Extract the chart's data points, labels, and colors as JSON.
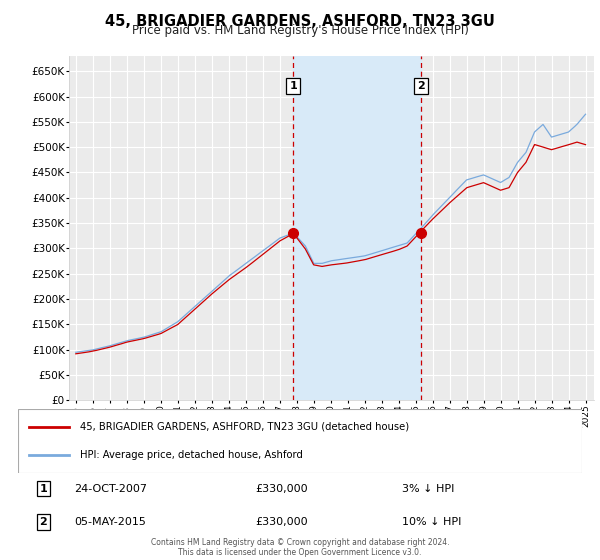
{
  "title": "45, BRIGADIER GARDENS, ASHFORD, TN23 3GU",
  "subtitle": "Price paid vs. HM Land Registry's House Price Index (HPI)",
  "ytick_values": [
    0,
    50000,
    100000,
    150000,
    200000,
    250000,
    300000,
    350000,
    400000,
    450000,
    500000,
    550000,
    600000,
    650000
  ],
  "ylim": [
    0,
    680000
  ],
  "xlim_start": 1994.6,
  "xlim_end": 2025.5,
  "xtick_years": [
    1995,
    1996,
    1997,
    1998,
    1999,
    2000,
    2001,
    2002,
    2003,
    2004,
    2005,
    2006,
    2007,
    2008,
    2009,
    2010,
    2011,
    2012,
    2013,
    2014,
    2015,
    2016,
    2017,
    2018,
    2019,
    2020,
    2021,
    2022,
    2023,
    2024,
    2025
  ],
  "sale1_x": 2007.81,
  "sale1_y": 330000,
  "sale1_label": "1",
  "sale1_date": "24-OCT-2007",
  "sale1_price": "£330,000",
  "sale1_hpi": "3% ↓ HPI",
  "sale2_x": 2015.34,
  "sale2_y": 330000,
  "sale2_label": "2",
  "sale2_date": "05-MAY-2015",
  "sale2_price": "£330,000",
  "sale2_hpi": "10% ↓ HPI",
  "price_line_color": "#cc0000",
  "hpi_line_color": "#7aaadd",
  "background_color": "#ffffff",
  "plot_bg_color": "#ebebeb",
  "grid_color": "#ffffff",
  "shaded_region_color": "#d8eaf8",
  "footer_text": "Contains HM Land Registry data © Crown copyright and database right 2024.\nThis data is licensed under the Open Government Licence v3.0.",
  "legend1_text": "45, BRIGADIER GARDENS, ASHFORD, TN23 3GU (detached house)",
  "legend2_text": "HPI: Average price, detached house, Ashford",
  "title_fontsize": 10.5,
  "subtitle_fontsize": 8.5
}
